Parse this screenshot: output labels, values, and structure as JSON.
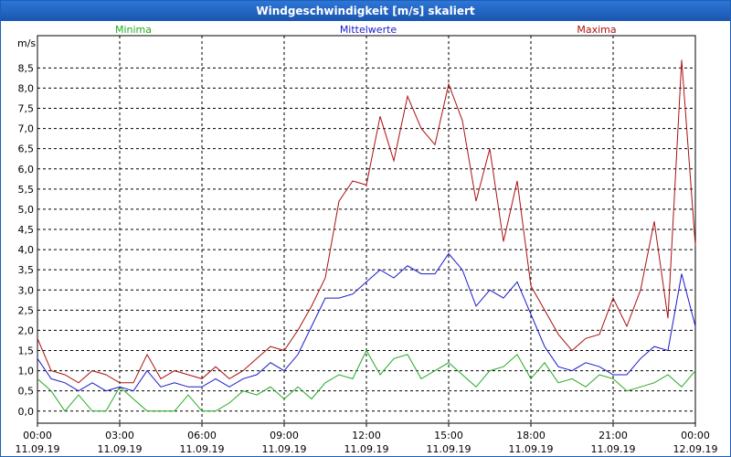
{
  "window": {
    "title": "Windgeschwindigkeit [m/s] skaliert"
  },
  "colors": {
    "minima": "#22aa22",
    "mittelwerte": "#1a1acc",
    "maxima": "#aa1111",
    "grid": "#000000",
    "axis": "#000000"
  },
  "chart_data": {
    "type": "line",
    "title": "Windgeschwindigkeit [m/s] skaliert",
    "ylabel": "m/s",
    "xlabel": "",
    "ylim": [
      -0.3,
      9.3
    ],
    "xlim": [
      0,
      24
    ],
    "yticks": [
      0,
      0.5,
      1,
      1.5,
      2,
      2.5,
      3,
      3.5,
      4,
      4.5,
      5,
      5.5,
      6,
      6.5,
      7,
      7.5,
      8,
      8.5
    ],
    "ytick_labels": [
      "0,0",
      "0,5",
      "1,0",
      "1,5",
      "2,0",
      "2,5",
      "3,0",
      "3,5",
      "4,0",
      "4,5",
      "5,0",
      "5,5",
      "6,0",
      "6,5",
      "7,0",
      "7,5",
      "8,0",
      "8,5"
    ],
    "xticks": [
      0,
      3,
      6,
      9,
      12,
      15,
      18,
      21,
      24
    ],
    "xtick_labels": [
      {
        "time": "00:00",
        "date": "11.09.19"
      },
      {
        "time": "03:00",
        "date": "11.09.19"
      },
      {
        "time": "06:00",
        "date": "11.09.19"
      },
      {
        "time": "09:00",
        "date": "11.09.19"
      },
      {
        "time": "12:00",
        "date": "11.09.19"
      },
      {
        "time": "15:00",
        "date": "11.09.19"
      },
      {
        "time": "18:00",
        "date": "11.09.19"
      },
      {
        "time": "21:00",
        "date": "11.09.19"
      },
      {
        "time": "00:00",
        "date": "12.09.19"
      }
    ],
    "grid": true,
    "series": [
      {
        "name": "Minima",
        "color": "#22aa22",
        "x": [
          0,
          0.5,
          1,
          1.5,
          2,
          2.5,
          3,
          3.5,
          4,
          4.5,
          5,
          5.5,
          6,
          6.5,
          7,
          7.5,
          8,
          8.5,
          9,
          9.5,
          10,
          10.5,
          11,
          11.5,
          12,
          12.5,
          13,
          13.5,
          14,
          14.5,
          15,
          15.5,
          16,
          16.5,
          17,
          17.5,
          18,
          18.5,
          19,
          19.5,
          20,
          20.5,
          21,
          21.5,
          22,
          22.5,
          23,
          23.5,
          24
        ],
        "values": [
          0.8,
          0.5,
          0,
          0.4,
          0,
          0,
          0.6,
          0.3,
          0,
          0,
          0,
          0.4,
          0,
          0,
          0.2,
          0.5,
          0.4,
          0.6,
          0.3,
          0.6,
          0.3,
          0.7,
          0.9,
          0.8,
          1.5,
          0.9,
          1.3,
          1.4,
          0.8,
          1.0,
          1.2,
          0.9,
          0.6,
          1.0,
          1.1,
          1.4,
          0.8,
          1.2,
          0.7,
          0.8,
          0.6,
          0.9,
          0.8,
          0.5,
          0.6,
          0.7,
          0.9,
          0.6,
          1.0
        ]
      },
      {
        "name": "Mittelwerte",
        "color": "#1a1acc",
        "x": [
          0,
          0.5,
          1,
          1.5,
          2,
          2.5,
          3,
          3.5,
          4,
          4.5,
          5,
          5.5,
          6,
          6.5,
          7,
          7.5,
          8,
          8.5,
          9,
          9.5,
          10,
          10.5,
          11,
          11.5,
          12,
          12.5,
          13,
          13.5,
          14,
          14.5,
          15,
          15.5,
          16,
          16.5,
          17,
          17.5,
          18,
          18.5,
          19,
          19.5,
          20,
          20.5,
          21,
          21.5,
          22,
          22.5,
          23,
          23.5,
          24
        ],
        "values": [
          1.3,
          0.8,
          0.7,
          0.5,
          0.7,
          0.5,
          0.6,
          0.5,
          1.0,
          0.6,
          0.7,
          0.6,
          0.6,
          0.8,
          0.6,
          0.8,
          0.9,
          1.2,
          1.0,
          1.4,
          2.1,
          2.8,
          2.8,
          2.9,
          3.2,
          3.5,
          3.3,
          3.6,
          3.4,
          3.4,
          3.9,
          3.5,
          2.6,
          3.0,
          2.8,
          3.2,
          2.4,
          1.6,
          1.1,
          1.0,
          1.2,
          1.1,
          0.9,
          0.9,
          1.3,
          1.6,
          1.5,
          3.4,
          2.1
        ]
      },
      {
        "name": "Maxima",
        "color": "#aa1111",
        "x": [
          0,
          0.5,
          1,
          1.5,
          2,
          2.5,
          3,
          3.5,
          4,
          4.5,
          5,
          5.5,
          6,
          6.5,
          7,
          7.5,
          8,
          8.5,
          9,
          9.5,
          10,
          10.5,
          11,
          11.5,
          12,
          12.5,
          13,
          13.5,
          14,
          14.5,
          15,
          15.5,
          16,
          16.5,
          17,
          17.5,
          18,
          18.5,
          19,
          19.5,
          20,
          20.5,
          21,
          21.5,
          22,
          22.5,
          23,
          23.5,
          24
        ],
        "values": [
          1.8,
          1.0,
          0.9,
          0.7,
          1.0,
          0.9,
          0.7,
          0.7,
          1.4,
          0.8,
          1.0,
          0.9,
          0.8,
          1.1,
          0.8,
          1.0,
          1.3,
          1.6,
          1.5,
          2.0,
          2.6,
          3.3,
          5.2,
          5.7,
          5.6,
          7.3,
          6.2,
          7.8,
          7.0,
          6.6,
          8.1,
          7.2,
          5.2,
          6.5,
          4.2,
          5.7,
          3.1,
          2.5,
          1.9,
          1.5,
          1.8,
          1.9,
          2.8,
          2.1,
          3.0,
          4.7,
          2.3,
          8.7,
          4.1
        ]
      }
    ],
    "legend": [
      {
        "label": "Minima",
        "position": "top-left"
      },
      {
        "label": "Mittelwerte",
        "position": "top-center"
      },
      {
        "label": "Maxima",
        "position": "top-right"
      }
    ]
  }
}
